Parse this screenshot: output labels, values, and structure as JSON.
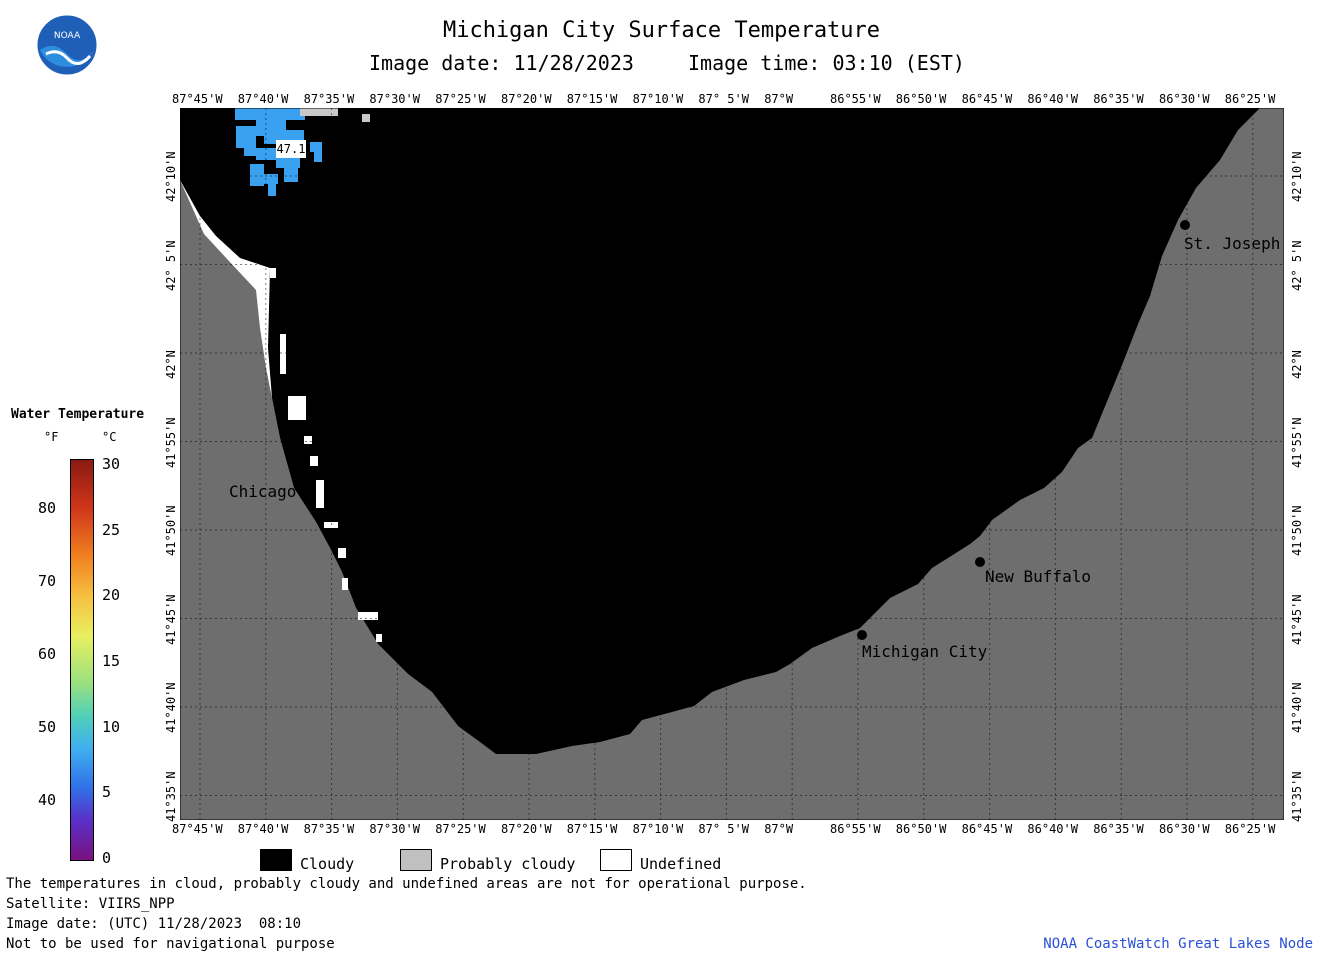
{
  "header": {
    "title": "Michigan City Surface Temperature",
    "image_date": "Image date: 11/28/2023",
    "image_time": "Image time: 03:10 (EST)"
  },
  "logo": {
    "text": "NOAA"
  },
  "axes": {
    "lon_ticks": [
      "87°45'W",
      "87°40'W",
      "87°35'W",
      "87°30'W",
      "87°25'W",
      "87°20'W",
      "87°15'W",
      "87°10'W",
      "87° 5'W",
      "87°W",
      "86°55'W",
      "86°50'W",
      "86°45'W",
      "86°40'W",
      "86°35'W",
      "86°30'W",
      "86°25'W"
    ],
    "lat_ticks": [
      "42°10'N",
      "42° 5'N",
      "42°N",
      "41°55'N",
      "41°50'N",
      "41°45'N",
      "41°40'N",
      "41°35'N"
    ]
  },
  "cities": [
    {
      "name": "Chicago"
    },
    {
      "name": "St. Joseph"
    },
    {
      "name": "New Buffalo"
    },
    {
      "name": "Michigan City"
    }
  ],
  "temp_label": {
    "value": "47.1"
  },
  "colorbar": {
    "title": "Water Temperature",
    "unit_f": "°F",
    "unit_c": "°C",
    "f_ticks": [
      "80",
      "70",
      "60",
      "50",
      "40"
    ],
    "c_ticks": [
      "30",
      "25",
      "20",
      "15",
      "10",
      "5",
      "0"
    ]
  },
  "legend": {
    "cloudy": "Cloudy",
    "probably_cloudy": "Probably cloudy",
    "undefined": "Undefined"
  },
  "footer": {
    "note": "The temperatures in cloud, probably cloudy and undefined areas are not for operational purpose.",
    "satellite": "Satellite: VIIRS_NPP",
    "utc_date": "Image date: (UTC) 11/28/2023  08:10",
    "nav": "Not to be used for navigational purpose",
    "credit": "NOAA CoastWatch Great Lakes Node"
  },
  "colors": {
    "land": "#6e6e6e",
    "cloud": "#000000",
    "water_warm": "#3aa0f0"
  }
}
